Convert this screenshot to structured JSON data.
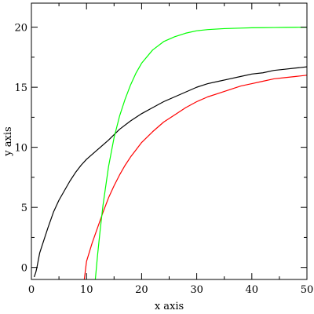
{
  "chart_data": {
    "type": "line",
    "xlabel": "x axis",
    "ylabel": "y axis",
    "xlim": [
      0,
      50
    ],
    "ylim": [
      -1,
      22
    ],
    "grid": false,
    "x_ticks": [
      0,
      10,
      20,
      30,
      40,
      50
    ],
    "y_ticks": [
      0,
      5,
      10,
      15,
      20
    ],
    "series": [
      {
        "color": "#000000",
        "x": [
          0.5,
          0.8,
          1,
          1.5,
          2,
          3,
          4,
          5,
          6,
          7,
          8,
          9,
          10,
          12,
          14,
          16,
          18,
          20,
          22,
          24,
          26,
          28,
          30,
          32,
          34,
          36,
          38,
          40,
          42,
          44,
          46,
          48,
          50
        ],
        "y": [
          -0.8,
          -0.4,
          0.0,
          1.2,
          1.9,
          3.3,
          4.6,
          5.6,
          6.4,
          7.2,
          7.9,
          8.5,
          9.0,
          9.8,
          10.6,
          11.5,
          12.2,
          12.8,
          13.3,
          13.8,
          14.2,
          14.6,
          15.0,
          15.3,
          15.5,
          15.7,
          15.9,
          16.1,
          16.2,
          16.4,
          16.5,
          16.6,
          16.7
        ]
      },
      {
        "color": "#ff0000",
        "x": [
          9.6,
          10,
          11,
          12,
          13,
          14,
          15,
          16,
          17,
          18,
          19,
          20,
          22,
          24,
          26,
          28,
          30,
          32,
          34,
          36,
          38,
          40,
          42,
          44,
          46,
          48,
          50
        ],
        "y": [
          -1.0,
          0.5,
          2.0,
          3.3,
          4.6,
          5.8,
          6.8,
          7.7,
          8.5,
          9.2,
          9.8,
          10.4,
          11.3,
          12.1,
          12.7,
          13.3,
          13.8,
          14.2,
          14.5,
          14.8,
          15.1,
          15.3,
          15.5,
          15.7,
          15.8,
          15.9,
          16.0
        ]
      },
      {
        "color": "#00ff00",
        "x": [
          11.6,
          12,
          12.5,
          13,
          14,
          15,
          16,
          17,
          18,
          19,
          20,
          22,
          24,
          26,
          28,
          30,
          32,
          35,
          38,
          40,
          42,
          44,
          46,
          48,
          50
        ],
        "y": [
          -1.0,
          1.0,
          3.2,
          5.2,
          8.4,
          10.8,
          12.6,
          14.0,
          15.2,
          16.2,
          17.0,
          18.1,
          18.8,
          19.2,
          19.5,
          19.7,
          19.8,
          19.88,
          19.92,
          19.95,
          19.96,
          19.97,
          19.98,
          19.99,
          20.0
        ]
      }
    ]
  }
}
